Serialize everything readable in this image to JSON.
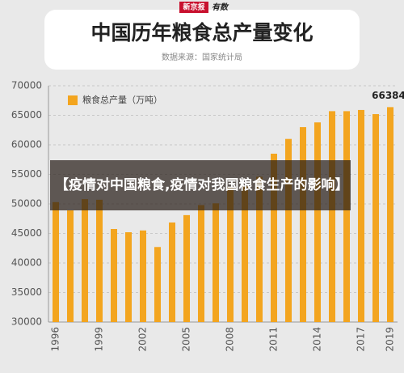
{
  "chart_data": {
    "type": "bar",
    "logo": "新京报",
    "logo_sub": "有数",
    "title": "中国历年粮食总产量变化",
    "subtitle": "数据来源：国家统计局",
    "categories": [
      "1996",
      null,
      null,
      "1999",
      null,
      null,
      "2002",
      null,
      null,
      "2005",
      null,
      null,
      "2008",
      null,
      null,
      "2011",
      null,
      null,
      "2014",
      null,
      null,
      "2017",
      null,
      "2019"
    ],
    "series": [
      {
        "name": "粮食总产量（万吨）",
        "color": "#f3a51f",
        "values": [
          50300,
          48900,
          50800,
          50700,
          45750,
          45200,
          45500,
          42700,
          46850,
          48100,
          49800,
          50100,
          52900,
          53000,
          54600,
          58500,
          61000,
          63000,
          63800,
          65700,
          65700,
          65900,
          65200,
          66384
        ]
      }
    ],
    "ylim": [
      30000,
      70000
    ],
    "yticks": [
      30000,
      35000,
      40000,
      45000,
      50000,
      55000,
      60000,
      65000,
      70000
    ],
    "grid": true,
    "legend": "top-left",
    "overlay_caption": "【疫情对中国粮食,疫情对我国粮食生产的影响】"
  }
}
